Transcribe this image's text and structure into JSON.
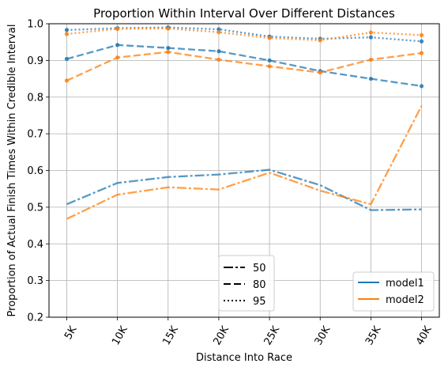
{
  "chart_data": {
    "type": "line",
    "title": "Proportion Within Interval Over Different Distances",
    "xlabel": "Distance Into Race",
    "ylabel": "Proportion of Actual Finish Times Within Credible Interval",
    "categories": [
      "5K",
      "10K",
      "15K",
      "20K",
      "25K",
      "30K",
      "35K",
      "40K"
    ],
    "ylim": [
      0.2,
      1.0
    ],
    "yticks": [
      0.2,
      0.3,
      0.4,
      0.5,
      0.6,
      0.7,
      0.8,
      0.9,
      1.0
    ],
    "grid": true,
    "colors": {
      "model1": "#1f77b4",
      "model2": "#ff7f0e"
    },
    "series": [
      {
        "name": "model1",
        "interval": "50",
        "values": [
          0.508,
          0.566,
          0.582,
          0.589,
          0.602,
          0.56,
          0.492,
          0.494
        ]
      },
      {
        "name": "model1",
        "interval": "80",
        "values": [
          0.904,
          0.942,
          0.934,
          0.925,
          0.9,
          0.871,
          0.85,
          0.83
        ]
      },
      {
        "name": "model1",
        "interval": "95",
        "values": [
          0.983,
          0.988,
          0.99,
          0.985,
          0.965,
          0.959,
          0.963,
          0.952
        ]
      },
      {
        "name": "model2",
        "interval": "50",
        "values": [
          0.468,
          0.534,
          0.554,
          0.548,
          0.594,
          0.545,
          0.508,
          0.776
        ]
      },
      {
        "name": "model2",
        "interval": "80",
        "values": [
          0.845,
          0.908,
          0.923,
          0.902,
          0.884,
          0.867,
          0.902,
          0.92
        ]
      },
      {
        "name": "model2",
        "interval": "95",
        "values": [
          0.972,
          0.986,
          0.987,
          0.977,
          0.961,
          0.955,
          0.976,
          0.969
        ]
      }
    ],
    "legend_interval": {
      "position": "bottom-center",
      "entries": [
        {
          "label": "50",
          "style": "dashdot"
        },
        {
          "label": "80",
          "style": "dashed"
        },
        {
          "label": "95",
          "style": "dotted"
        }
      ]
    },
    "legend_model": {
      "position": "lower-right",
      "entries": [
        {
          "label": "model1",
          "color": "#1f77b4"
        },
        {
          "label": "model2",
          "color": "#ff7f0e"
        }
      ]
    }
  }
}
